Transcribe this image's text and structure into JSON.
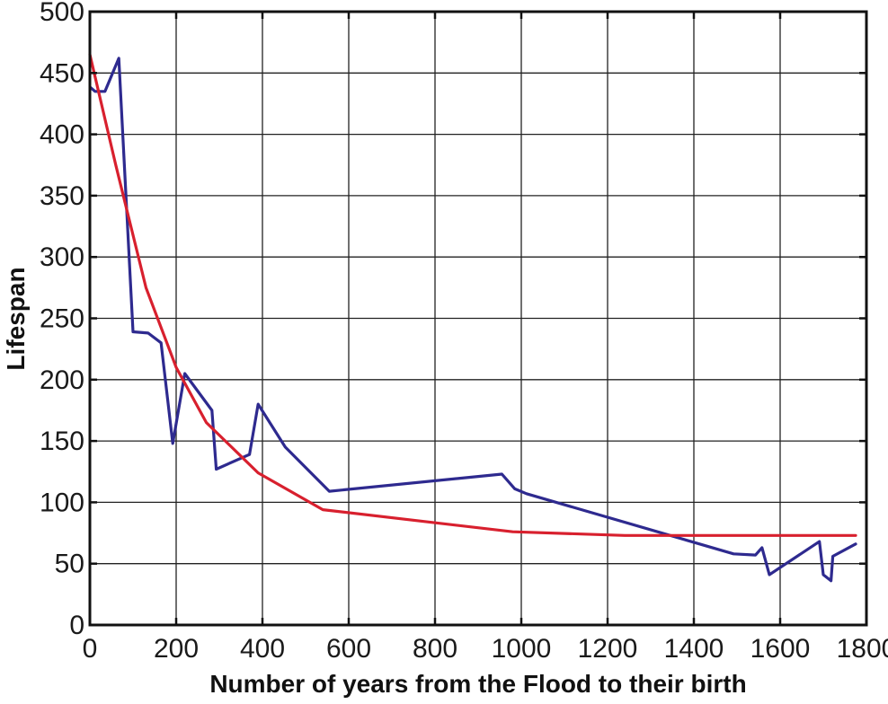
{
  "chart_data": {
    "type": "line",
    "title": "",
    "xlabel": "Number of years from the Flood to their birth",
    "ylabel": "Lifespan",
    "xlim": [
      0,
      1800
    ],
    "ylim": [
      0,
      500
    ],
    "xticks": [
      0,
      200,
      400,
      600,
      800,
      1000,
      1200,
      1400,
      1600,
      1800
    ],
    "xtick_labels": [
      "0",
      "200",
      "400",
      "600",
      "800",
      "1000",
      "1200",
      "1400",
      "1600",
      "1800"
    ],
    "yticks": [
      0,
      50,
      100,
      150,
      200,
      250,
      300,
      350,
      400,
      450,
      500
    ],
    "ytick_labels": [
      "0",
      "50",
      "100",
      "150",
      "200",
      "250",
      "300",
      "350",
      "400",
      "450",
      "500"
    ],
    "grid": true,
    "legend": "none",
    "series": [
      {
        "color": "#2e2a8f",
        "points": [
          [
            2,
            438
          ],
          [
            12,
            435
          ],
          [
            35,
            435
          ],
          [
            67,
            462
          ],
          [
            100,
            239
          ],
          [
            135,
            238
          ],
          [
            165,
            230
          ],
          [
            192,
            148
          ],
          [
            220,
            205
          ],
          [
            283,
            175
          ],
          [
            293,
            127
          ],
          [
            370,
            139
          ],
          [
            390,
            180
          ],
          [
            453,
            145
          ],
          [
            555,
            109
          ],
          [
            955,
            123
          ],
          [
            985,
            111
          ],
          [
            1012,
            107
          ],
          [
            1492,
            58
          ],
          [
            1543,
            57
          ],
          [
            1558,
            63
          ],
          [
            1575,
            41
          ],
          [
            1691,
            68
          ],
          [
            1700,
            41
          ],
          [
            1718,
            36
          ],
          [
            1722,
            56
          ],
          [
            1775,
            66
          ]
        ]
      },
      {
        "color": "#d8202e",
        "points": [
          [
            0,
            465
          ],
          [
            60,
            375
          ],
          [
            130,
            275
          ],
          [
            200,
            210
          ],
          [
            270,
            165
          ],
          [
            390,
            124
          ],
          [
            540,
            94
          ],
          [
            980,
            76
          ],
          [
            1240,
            73
          ],
          [
            1775,
            73
          ]
        ]
      }
    ]
  }
}
